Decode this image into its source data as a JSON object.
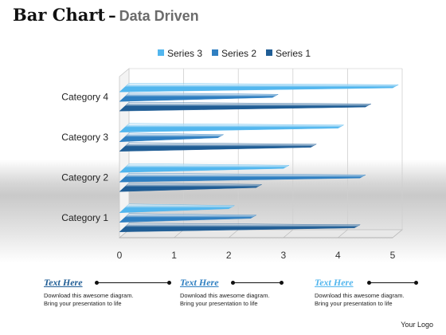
{
  "header": {
    "title": "Bar Chart",
    "dash": "–",
    "subtitle": "Data Driven"
  },
  "chart_data": {
    "type": "bar",
    "orientation": "horizontal",
    "categories": [
      "Category 1",
      "Category 2",
      "Category 3",
      "Category 4"
    ],
    "series": [
      {
        "name": "Series 1",
        "values": [
          4.3,
          2.5,
          3.5,
          4.5
        ]
      },
      {
        "name": "Series 2",
        "values": [
          2.4,
          4.4,
          1.8,
          2.8
        ]
      },
      {
        "name": "Series 3",
        "values": [
          2.0,
          3.0,
          4.0,
          5.0
        ]
      }
    ],
    "xticks": [
      "0",
      "1",
      "2",
      "3",
      "4",
      "5"
    ],
    "xlim": [
      0,
      5
    ],
    "grid": true,
    "legend": "top",
    "legend_order": [
      "Series 3",
      "Series 2",
      "Series 1"
    ],
    "colors": {
      "Series 1": "#1f5d95",
      "Series 2": "#2f7fc1",
      "Series 3": "#52b6ee"
    }
  },
  "features": [
    {
      "heading": "Text Here",
      "body": [
        "Download this awesome diagram.",
        "Bring your presentation to life"
      ],
      "color": "#1f5d95"
    },
    {
      "heading": "Text Here",
      "body": [
        "Download this awesome diagram.",
        "Bring your presentation to life"
      ],
      "color": "#2f7fc1"
    },
    {
      "heading": "Text Here",
      "body": [
        "Download this awesome diagram.",
        "Bring your presentation to life"
      ],
      "color": "#52b6ee"
    }
  ],
  "footer": {
    "logo": "Your Logo"
  }
}
